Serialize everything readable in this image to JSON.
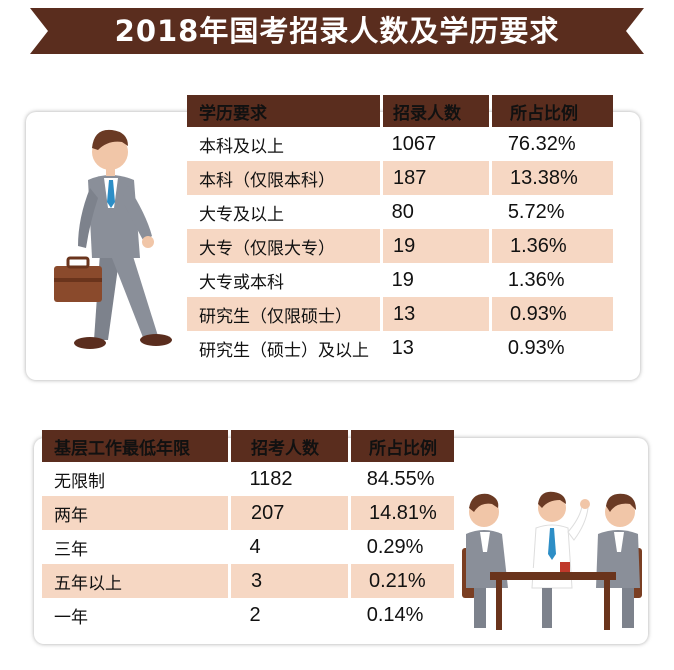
{
  "title": "2018年国考招录人数及学历要求",
  "education_table": {
    "headers": [
      "学历要求",
      "招录人数",
      "所占比例"
    ],
    "rows": [
      [
        "本科及以上",
        "1067",
        "76.32%"
      ],
      [
        "本科（仅限本科）",
        "187",
        "13.38%"
      ],
      [
        "大专及以上",
        "80",
        "5.72%"
      ],
      [
        "大专（仅限大专）",
        "19",
        "1.36%"
      ],
      [
        "大专或本科",
        "19",
        "1.36%"
      ],
      [
        "研究生（仅限硕士）",
        "13",
        "0.93%"
      ],
      [
        "研究生（硕士）及以上",
        "13",
        "0.93%"
      ]
    ]
  },
  "work_table": {
    "headers": [
      "基层工作最低年限",
      "招考人数",
      "所占比例"
    ],
    "rows": [
      [
        "无限制",
        "1182",
        "84.55%"
      ],
      [
        "两年",
        "207",
        "14.81%"
      ],
      [
        "三年",
        "4",
        "0.29%"
      ],
      [
        "五年以上",
        "3",
        "0.21%"
      ],
      [
        "一年",
        "2",
        "0.14%"
      ]
    ]
  },
  "colors": {
    "header_bg": "#5a2d1e",
    "stripe": "#f6d7c3",
    "suit": "#8a8f99"
  },
  "icons": [
    "walking-businessman-icon",
    "meeting-people-icon",
    "briefcase-icon"
  ]
}
